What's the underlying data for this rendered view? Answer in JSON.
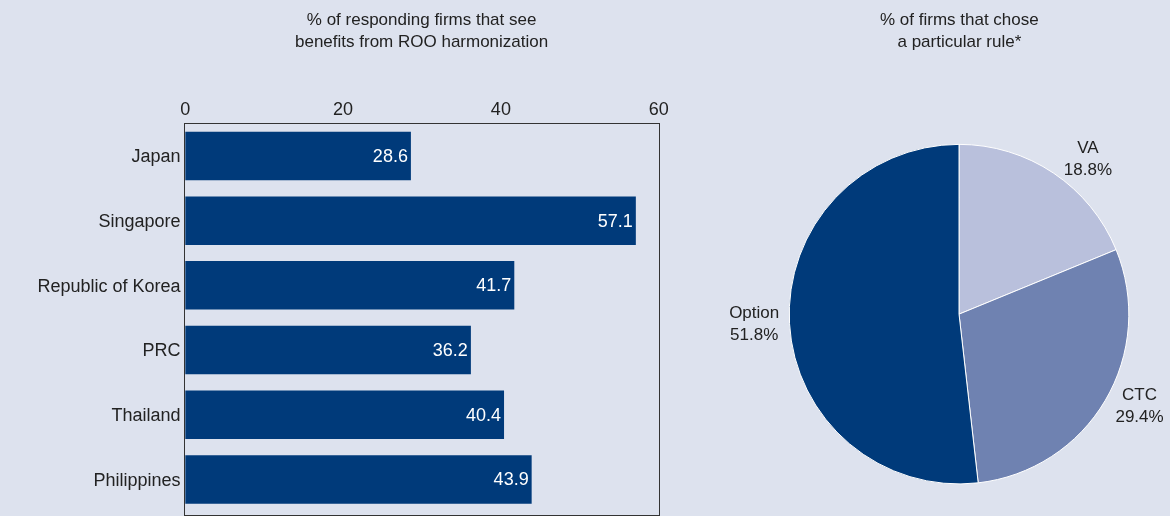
{
  "chart_data": [
    {
      "type": "bar",
      "orientation": "horizontal",
      "title": "% of responding firms that see\nbenefits from ROO harmonization",
      "categories": [
        "Japan",
        "Singapore",
        "Republic of Korea",
        "PRC",
        "Thailand",
        "Philippines"
      ],
      "values": [
        28.6,
        57.1,
        41.7,
        36.2,
        40.4,
        43.9
      ],
      "color": "#003a7a",
      "xlim": [
        0,
        60
      ],
      "xticks": [
        0,
        20,
        40,
        60
      ],
      "data_labels": true,
      "grid": false
    },
    {
      "type": "pie",
      "title": "% of firms that chose\na particular rule*",
      "categories": [
        "VA",
        "CTC",
        "Option"
      ],
      "values": [
        18.8,
        29.4,
        51.8
      ],
      "colors": [
        "#b9c0dc",
        "#6f82b1",
        "#003a7a"
      ],
      "value_labels": [
        "18.8%",
        "29.4%",
        "51.8%"
      ]
    }
  ]
}
